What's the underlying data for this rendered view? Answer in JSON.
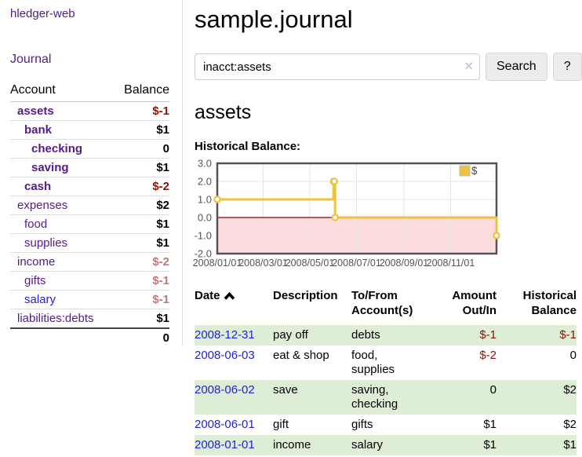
{
  "colors": {
    "accent_purple": "#551a8b",
    "link_blue": "#2222dd",
    "negative_strong": "#8b1507",
    "negative_soft": "#c07878",
    "row_green": "#ddedd6",
    "chart_gold": "#edc240"
  },
  "sidebar": {
    "brand": "hledger-web",
    "nav": {
      "journal_label": "Journal"
    },
    "accounts_table": {
      "headers": {
        "account": "Account",
        "balance": "Balance"
      },
      "rows": [
        {
          "account": "assets",
          "indent": 1,
          "balance": "$-1",
          "bold": true,
          "negative": "strong"
        },
        {
          "account": "bank",
          "indent": 2,
          "balance": "$1",
          "bold": true
        },
        {
          "account": "checking",
          "indent": 3,
          "balance": "0",
          "bold": true
        },
        {
          "account": "saving",
          "indent": 3,
          "balance": "$1",
          "bold": true
        },
        {
          "account": "cash",
          "indent": 2,
          "balance": "$-2",
          "bold": true,
          "negative": "strong"
        },
        {
          "account": "expenses",
          "indent": 1,
          "balance": "$2"
        },
        {
          "account": "food",
          "indent": 2,
          "balance": "$1"
        },
        {
          "account": "supplies",
          "indent": 2,
          "balance": "$1"
        },
        {
          "account": "income",
          "indent": 1,
          "balance": "$-2",
          "negative": "soft"
        },
        {
          "account": "gifts",
          "indent": 2,
          "balance": "$-1",
          "negative": "soft"
        },
        {
          "account": "salary",
          "indent": 2,
          "balance": "$-1",
          "negative": "soft",
          "link_color": "blue"
        },
        {
          "account": "liabilities:debts",
          "indent": 1,
          "balance": "$1"
        }
      ],
      "total": "0"
    }
  },
  "header": {
    "title": "sample.journal"
  },
  "search": {
    "value": "inacct:assets",
    "clear_icon": "×",
    "button_label": "Search",
    "help_label": "?"
  },
  "account_page": {
    "heading": "assets",
    "chart_label": "Historical Balance:"
  },
  "chart_data": {
    "type": "line",
    "title": "Historical Balance:",
    "series": [
      {
        "name": "$",
        "color": "#edc240",
        "steps": true,
        "points": [
          [
            "2008-01-01",
            1
          ],
          [
            "2008-06-01",
            2
          ],
          [
            "2008-06-02",
            2
          ],
          [
            "2008-06-03",
            0
          ],
          [
            "2008-12-31",
            -1
          ]
        ]
      }
    ],
    "x_range": [
      "2008-01-01",
      "2008-12-31"
    ],
    "ylim": [
      -2,
      3
    ],
    "yticks": [
      3.0,
      2.0,
      1.0,
      0.0,
      -1.0,
      -2.0
    ],
    "xtick_labels": [
      "2008/01/01",
      "2008/03/01",
      "2008/05/01",
      "2008/07/01",
      "2008/09/01",
      "2008/11/01"
    ],
    "legend_position": "top-right",
    "grid": true,
    "grid_color": "#e6e6e6",
    "border_color": "#545454",
    "tick_color": "#545454",
    "negative_region_color": "#fcdcdc",
    "zero_line_color": "#8b0000"
  },
  "register": {
    "headers": [
      {
        "label": "Date",
        "sort": "ascending"
      },
      {
        "label": "Description"
      },
      {
        "label": "To/From Account(s)"
      },
      {
        "label": "Amount Out/In",
        "align": "right"
      },
      {
        "label": "Historical Balance",
        "align": "right"
      }
    ],
    "rows": [
      {
        "date": "2008-12-31",
        "description": "pay off",
        "accounts": "debts",
        "amount": "$-1",
        "balance": "$-1",
        "amount_negative": true,
        "balance_negative": true
      },
      {
        "date": "2008-06-03",
        "description": "eat & shop",
        "accounts": "food, supplies",
        "amount": "$-2",
        "balance": "0",
        "amount_negative": true,
        "balance_negative": false
      },
      {
        "date": "2008-06-02",
        "description": "save",
        "accounts": "saving, checking",
        "amount": "0",
        "balance": "$2",
        "amount_negative": false,
        "balance_negative": false
      },
      {
        "date": "2008-06-01",
        "description": "gift",
        "accounts": "gifts",
        "amount": "$1",
        "balance": "$2",
        "amount_negative": false,
        "balance_negative": false
      },
      {
        "date": "2008-01-01",
        "description": "income",
        "accounts": "salary",
        "amount": "$1",
        "balance": "$1",
        "amount_negative": false,
        "balance_negative": false
      }
    ]
  }
}
